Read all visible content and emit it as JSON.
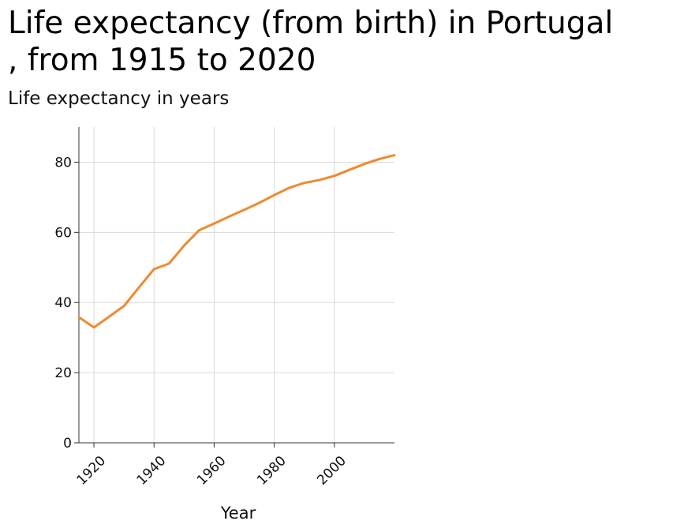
{
  "chart_data": {
    "type": "line",
    "title": "Life expectancy (from birth) in Portugal\n, from 1915 to 2020",
    "ylabel": "Life expectancy in years",
    "xlabel": "Year",
    "xlim": [
      1915,
      2020
    ],
    "ylim": [
      0,
      90
    ],
    "xticks": [
      1920,
      1940,
      1960,
      1980,
      2000
    ],
    "yticks": [
      0,
      20,
      40,
      60,
      80
    ],
    "grid": true,
    "line_color": "#ef8a2e",
    "series": [
      {
        "x": [
          1915,
          1920,
          1925,
          1930,
          1935,
          1940,
          1945,
          1950,
          1955,
          1960,
          1965,
          1970,
          1975,
          1980,
          1985,
          1990,
          1995,
          2000,
          2005,
          2010,
          2015,
          2020
        ],
        "y": [
          35.8,
          32.9,
          35.9,
          39.0,
          44.3,
          49.5,
          51.1,
          56.2,
          60.6,
          62.5,
          64.5,
          66.4,
          68.4,
          70.6,
          72.7,
          74.1,
          74.9,
          76.1,
          77.8,
          79.5,
          80.9,
          82.0
        ]
      }
    ]
  }
}
